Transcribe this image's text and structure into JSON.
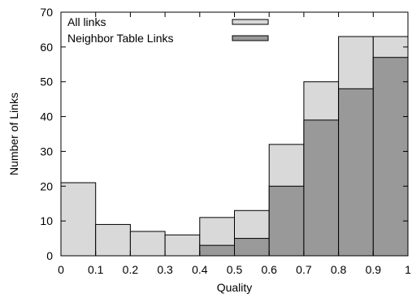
{
  "chart_data": {
    "type": "bar",
    "bar_mode": "overlay-histogram",
    "xlabel": "Quality",
    "ylabel": "Number of Links",
    "xlim": [
      0,
      1
    ],
    "ylim": [
      0,
      70
    ],
    "x_ticks": [
      "0",
      "0.1",
      "0.2",
      "0.3",
      "0.4",
      "0.5",
      "0.6",
      "0.7",
      "0.8",
      "0.9",
      "1"
    ],
    "y_ticks": [
      "0",
      "10",
      "20",
      "30",
      "40",
      "50",
      "60",
      "70"
    ],
    "bin_edges": [
      0,
      0.1,
      0.2,
      0.3,
      0.4,
      0.5,
      0.6,
      0.7,
      0.8,
      0.9,
      1.0
    ],
    "grid": false,
    "legend_position": "top-center",
    "series": [
      {
        "name": "All links",
        "color": "#d9d9d9",
        "values": [
          21,
          9,
          7,
          6,
          11,
          13,
          32,
          50,
          63,
          63
        ]
      },
      {
        "name": "Neighbor Table Links",
        "color": "#999999",
        "values": [
          0,
          0,
          0,
          0,
          3,
          5,
          20,
          39,
          48,
          57
        ]
      }
    ]
  }
}
